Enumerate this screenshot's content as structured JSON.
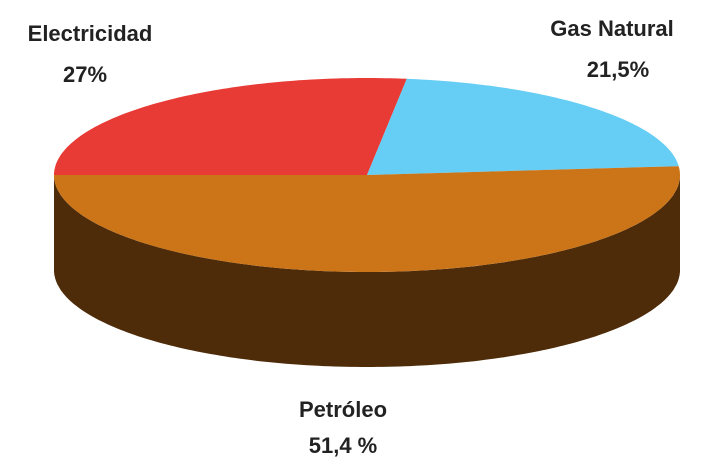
{
  "chart_data": {
    "type": "pie3d",
    "categories": [
      "Electricidad",
      "Gas Natural",
      "Petróleo"
    ],
    "values": [
      27,
      21.5,
      51.4
    ],
    "value_labels": [
      "27%",
      "21,5%",
      "51,4 %"
    ],
    "colors": [
      "#e83b35",
      "#66cdf4",
      "#cc7418"
    ]
  }
}
